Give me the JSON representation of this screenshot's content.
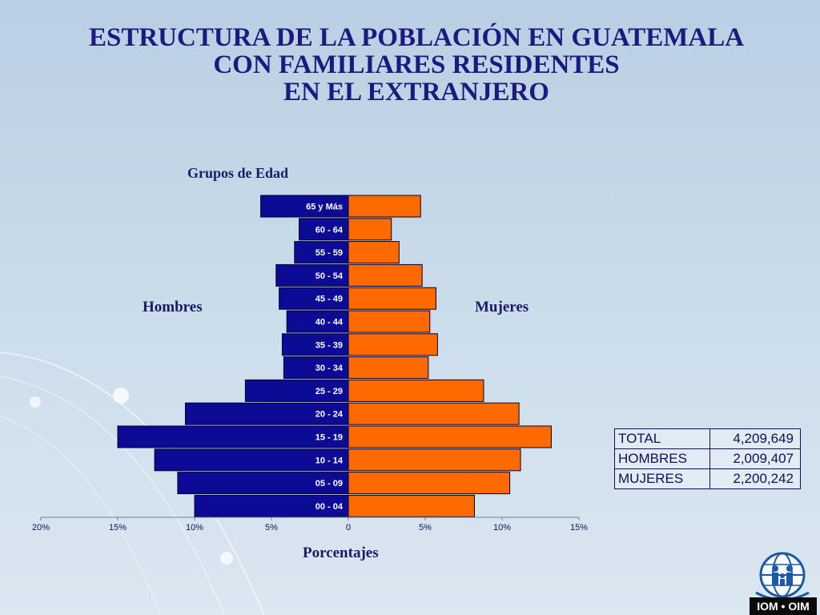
{
  "title_lines": [
    "ESTRUCTURA DE LA POBLACIÓN EN GUATEMALA",
    "CON FAMILIARES  RESIDENTES",
    "EN EL EXTRANJERO"
  ],
  "chart_data": {
    "type": "bar",
    "subtype": "population-pyramid",
    "age_axis_label": "Grupos de Edad",
    "xlabel": "Porcentajes",
    "left_label": "Hombres",
    "right_label": "Mujeres",
    "categories": [
      "65 y Más",
      "60 - 64",
      "55 - 59",
      "50 - 54",
      "45 - 49",
      "40 - 44",
      "35 - 39",
      "30 - 34",
      "25 - 29",
      "20 - 24",
      "15 - 19",
      "10 - 14",
      "05 - 09",
      "00 - 04"
    ],
    "series": [
      {
        "name": "Hombres",
        "side": "left",
        "color": "#0b0b96",
        "values": [
          5.7,
          3.2,
          3.5,
          4.7,
          4.5,
          4.0,
          4.3,
          4.2,
          6.7,
          10.6,
          15.0,
          12.6,
          11.1,
          10.0
        ]
      },
      {
        "name": "Mujeres",
        "side": "right",
        "color": "#ff6a00",
        "values": [
          4.7,
          2.8,
          3.3,
          4.8,
          5.7,
          5.3,
          5.8,
          5.2,
          8.8,
          11.1,
          13.2,
          11.2,
          10.5,
          8.2
        ]
      }
    ],
    "xticks": [
      {
        "value": -20,
        "label": "20%"
      },
      {
        "value": -15,
        "label": "15%"
      },
      {
        "value": -10,
        "label": "10%"
      },
      {
        "value": -5,
        "label": "5%"
      },
      {
        "value": 0,
        "label": "0"
      },
      {
        "value": 5,
        "label": "5%"
      },
      {
        "value": 10,
        "label": "10%"
      },
      {
        "value": 15,
        "label": "15%"
      }
    ],
    "xlim": [
      -20,
      15
    ]
  },
  "totals": [
    {
      "label": "TOTAL",
      "value": "4,209,649"
    },
    {
      "label": "HOMBRES",
      "value": "2,009,407"
    },
    {
      "label": "MUJERES",
      "value": "2,200,242"
    }
  ],
  "logo": {
    "text": "IOM • OIM",
    "icon": "iom-globe-family-icon"
  }
}
